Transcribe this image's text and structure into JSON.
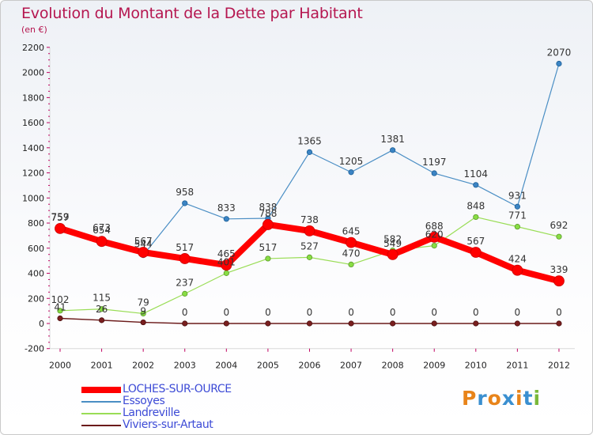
{
  "title": "Evolution du Montant de la Dette par Habitant",
  "unit_label": "(en €)",
  "brand": {
    "text": "Proxiti",
    "letter_colors": [
      "#e8841a",
      "#3a8fd0",
      "#e8841a",
      "#3a8fd0",
      "#e8841a",
      "#3a8fd0",
      "#7ab83a"
    ]
  },
  "chart_data": {
    "type": "line",
    "title": "Evolution du Montant de la Dette par Habitant",
    "ylabel": "(en €)",
    "xlabel": "",
    "x": [
      "2000",
      "2001",
      "2002",
      "2003",
      "2004",
      "2005",
      "2006",
      "2007",
      "2008",
      "2009",
      "2010",
      "2011",
      "2012"
    ],
    "ylim": [
      -200,
      2200
    ],
    "yticks": [
      -200,
      0,
      200,
      400,
      600,
      800,
      1000,
      1200,
      1400,
      1600,
      1800,
      2000,
      2200
    ],
    "grid": false,
    "legend_position": "bottom-left",
    "series": [
      {
        "name": "LOCHES-SUR-OURCE",
        "color": "#ff0000",
        "values": [
          757,
          654,
          567,
          517,
          465,
          788,
          738,
          645,
          549,
          688,
          567,
          424,
          339
        ]
      },
      {
        "name": "Essoyes",
        "color": "#4a8ec4",
        "values": [
          759,
          673,
          544,
          958,
          833,
          838,
          1365,
          1205,
          1381,
          1197,
          1104,
          931,
          2070
        ]
      },
      {
        "name": "Landreville",
        "color": "#99dd55",
        "values": [
          102,
          115,
          79,
          237,
          401,
          517,
          527,
          470,
          582,
          620,
          848,
          771,
          692
        ]
      },
      {
        "name": "Viviers-sur-Artaut",
        "color": "#6b1a1a",
        "values": [
          41,
          26,
          9,
          0,
          0,
          0,
          0,
          0,
          0,
          0,
          0,
          0,
          0
        ]
      }
    ]
  }
}
